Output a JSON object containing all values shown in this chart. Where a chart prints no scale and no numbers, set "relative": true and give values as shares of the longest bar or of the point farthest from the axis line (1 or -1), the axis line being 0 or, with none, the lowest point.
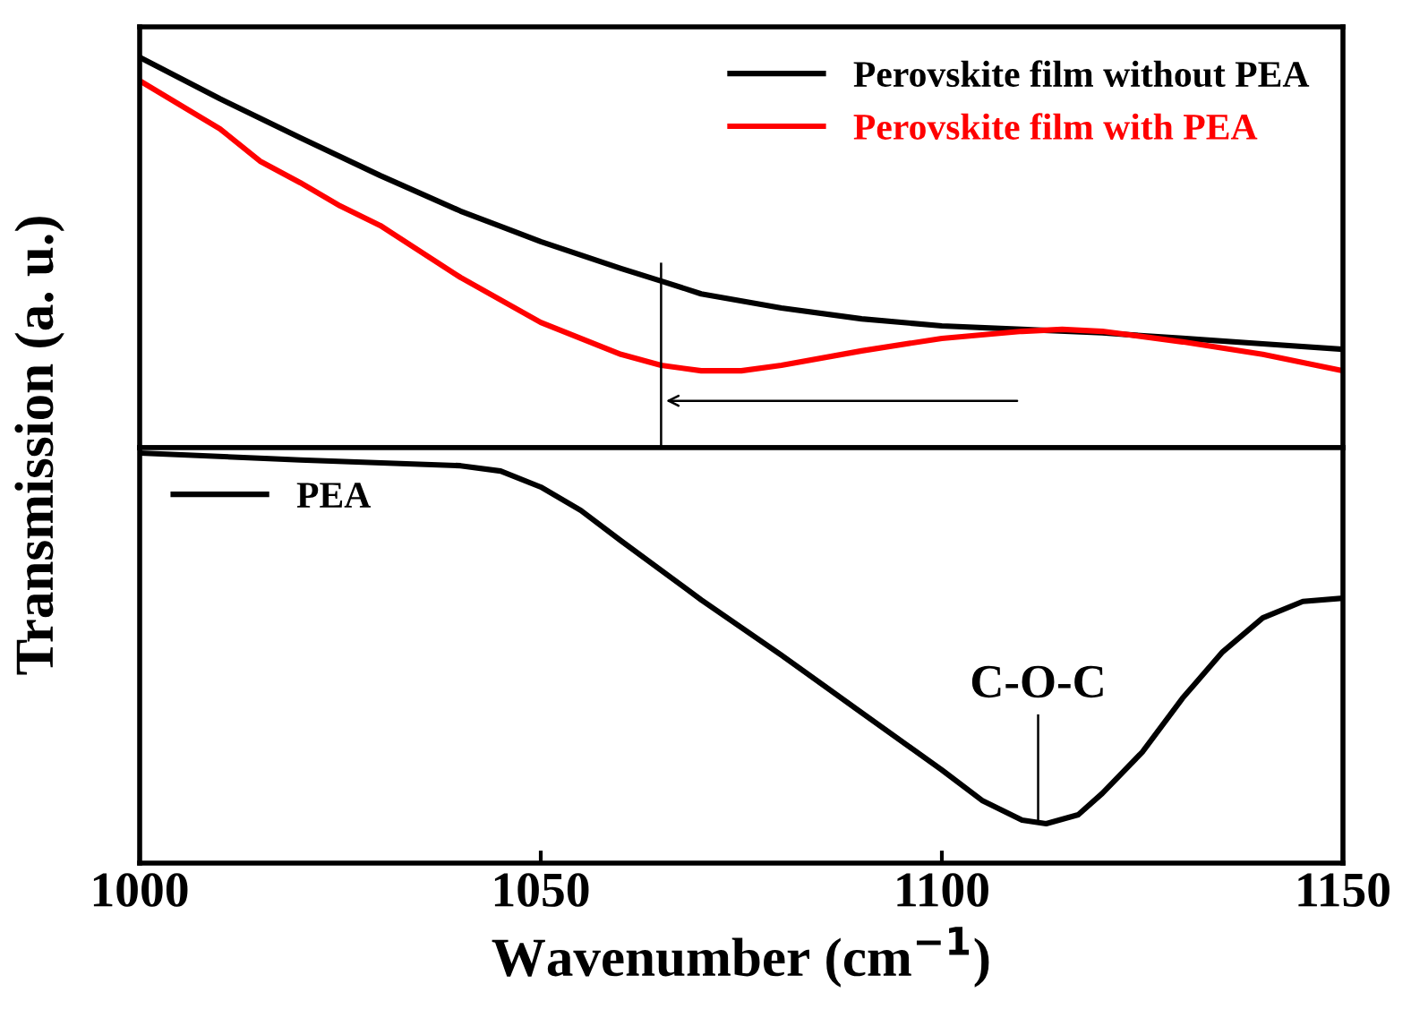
{
  "chart_data": [
    {
      "type": "line",
      "relative": true,
      "ylabel": "Transmission (a. u.)",
      "legend": "top right",
      "tick_labels": false,
      "xlim": [
        1000,
        1150
      ],
      "series": [
        {
          "name": "Perovskite film without PEA",
          "color": "#000000",
          "x": [
            1000,
            1010,
            1020,
            1030,
            1040,
            1050,
            1060,
            1065,
            1070,
            1080,
            1090,
            1100,
            1110,
            1120,
            1130,
            1140,
            1150
          ],
          "values": [
            1,
            0.894,
            0.794,
            0.697,
            0.606,
            0.528,
            0.459,
            0.427,
            0.394,
            0.358,
            0.33,
            0.312,
            0.303,
            0.294,
            0.28,
            0.266,
            0.252
          ]
        },
        {
          "name": "Perovskite film with PEA",
          "color": "#ff0000",
          "x": [
            1000,
            1010,
            1015,
            1020,
            1025,
            1030,
            1040,
            1050,
            1060,
            1065,
            1070,
            1075,
            1080,
            1090,
            1100,
            1110,
            1115,
            1120,
            1130,
            1140,
            1150
          ],
          "values": [
            0.94,
            0.817,
            0.734,
            0.679,
            0.619,
            0.569,
            0.436,
            0.321,
            0.239,
            0.211,
            0.197,
            0.197,
            0.211,
            0.248,
            0.28,
            0.298,
            0.303,
            0.298,
            0.271,
            0.239,
            0.197
          ]
        }
      ],
      "ref_lines": [
        {
          "axis": "x",
          "value": 1065
        }
      ]
    },
    {
      "type": "line",
      "relative": true,
      "xlabel": "Wavenumber (cm$^{−1}$)",
      "legend": "top left",
      "tick_labels": "x",
      "xlim": [
        1000,
        1150
      ],
      "xticks": [
        1000,
        1050,
        1100,
        1150
      ],
      "series": [
        {
          "name": "PEA",
          "color": "#000000",
          "x": [
            1000,
            1020,
            1040,
            1045,
            1050,
            1055,
            1060,
            1070,
            1080,
            1090,
            1100,
            1105,
            1110,
            1113,
            1117,
            1120,
            1125,
            1130,
            1135,
            1140,
            1145,
            1150
          ],
          "values": [
            1,
            0.983,
            0.969,
            0.956,
            0.917,
            0.86,
            0.786,
            0.642,
            0.507,
            0.367,
            0.227,
            0.153,
            0.105,
            0.096,
            0.118,
            0.17,
            0.271,
            0.402,
            0.515,
            0.598,
            0.638,
            0.646
          ]
        }
      ],
      "ref_lines": [
        {
          "axis": "x",
          "value": 1112
        }
      ],
      "annotations": [
        "C-O-C"
      ]
    }
  ]
}
